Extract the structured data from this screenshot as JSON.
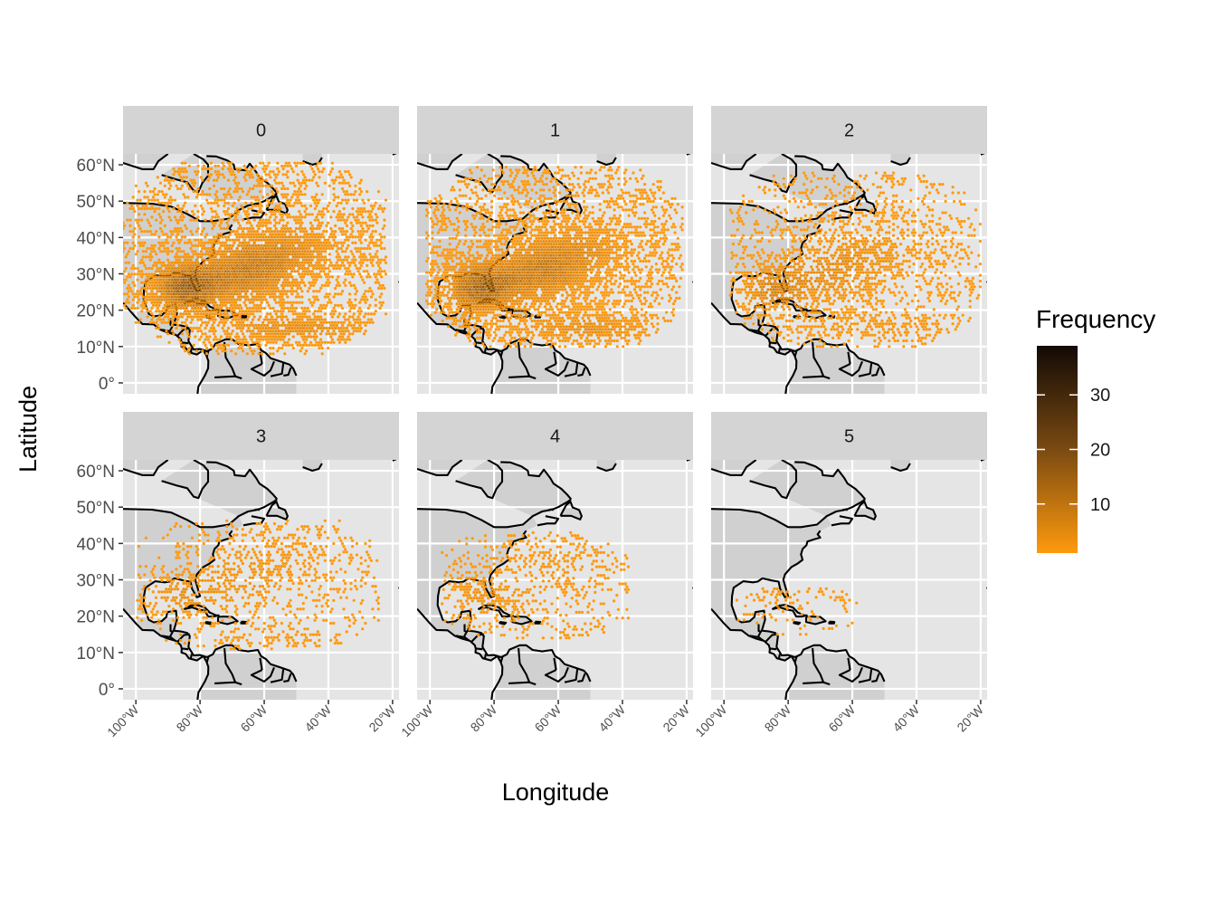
{
  "chart_data": {
    "type": "heatmap",
    "subtype": "faceted hexbin map",
    "xlabel": "Longitude",
    "ylabel": "Latitude",
    "xlim": [
      -104,
      -18
    ],
    "ylim": [
      -3,
      63
    ],
    "x_ticks": [
      {
        "value": -100,
        "label": "100°W"
      },
      {
        "value": -80,
        "label": "80°W"
      },
      {
        "value": -60,
        "label": "60°W"
      },
      {
        "value": -40,
        "label": "40°W"
      },
      {
        "value": -20,
        "label": "20°W"
      }
    ],
    "y_ticks": [
      {
        "value": 0,
        "label": "0°"
      },
      {
        "value": 10,
        "label": "10°N"
      },
      {
        "value": 20,
        "label": "20°N"
      },
      {
        "value": 30,
        "label": "30°N"
      },
      {
        "value": 40,
        "label": "40°N"
      },
      {
        "value": 50,
        "label": "50°N"
      },
      {
        "value": 60,
        "label": "60°N"
      }
    ],
    "facets": [
      {
        "label": "0",
        "extent": {
          "lon": [
            -104,
            -22
          ],
          "lat": [
            8,
            61
          ]
        },
        "max_frequency": 38,
        "density": "high"
      },
      {
        "label": "1",
        "extent": {
          "lon": [
            -101,
            -21
          ],
          "lat": [
            10,
            60
          ]
        },
        "max_frequency": 35,
        "density": "high"
      },
      {
        "label": "2",
        "extent": {
          "lon": [
            -98,
            -20
          ],
          "lat": [
            10,
            58
          ]
        },
        "max_frequency": 15,
        "density": "medium"
      },
      {
        "label": "3",
        "extent": {
          "lon": [
            -100,
            -24
          ],
          "lat": [
            11,
            47
          ]
        },
        "max_frequency": 8,
        "density": "low"
      },
      {
        "label": "4",
        "extent": {
          "lon": [
            -98,
            -38
          ],
          "lat": [
            14,
            43
          ]
        },
        "max_frequency": 5,
        "density": "low"
      },
      {
        "label": "5",
        "extent": {
          "lon": [
            -96,
            -56
          ],
          "lat": [
            15,
            28
          ]
        },
        "max_frequency": 3,
        "density": "very low"
      }
    ],
    "legend": {
      "title": "Frequency",
      "position": "right",
      "ticks": [
        10,
        20,
        30
      ],
      "range": [
        1,
        39
      ],
      "color_low": "#ff9a0d",
      "color_mid": "#7a4a12",
      "color_high": "#120a05"
    },
    "panel_background": "#e5e5e5",
    "strip_background": "#d4d4d4",
    "land_fill": "#d0d0d0",
    "grid": true
  }
}
